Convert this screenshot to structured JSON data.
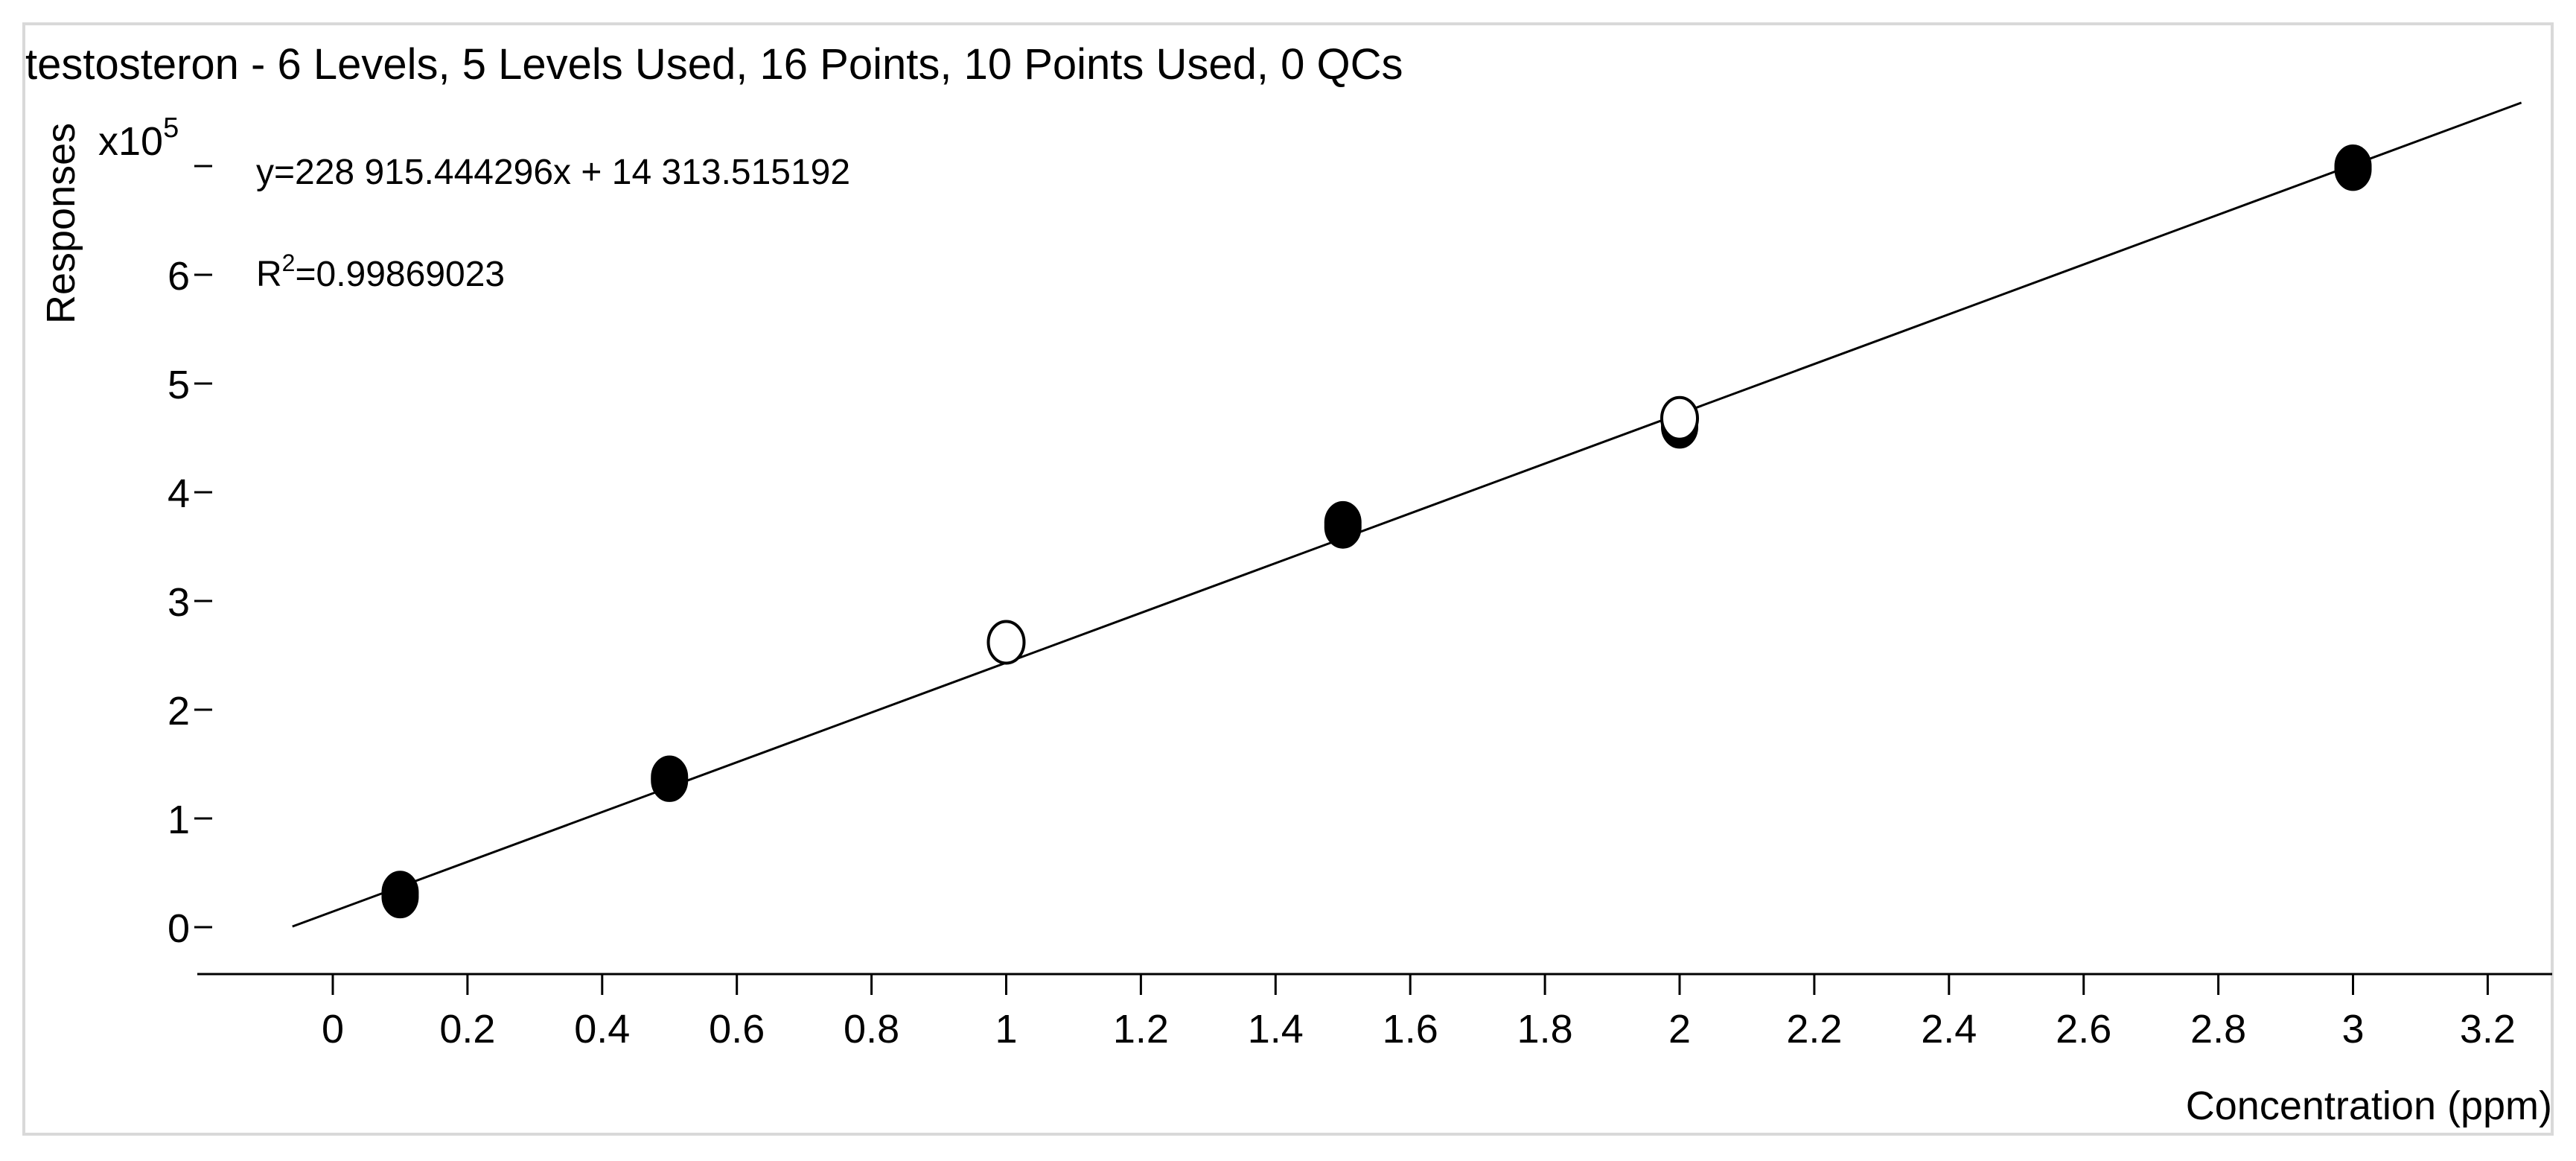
{
  "chart_data": {
    "type": "scatter",
    "title": "testosteron - 6 Levels, 5 Levels Used, 16 Points, 10 Points Used, 0 QCs",
    "xlabel": "Concentration (ppm)",
    "ylabel": "Responses",
    "y_multiplier": "x10",
    "y_multiplier_exp": "5",
    "xlim": [
      -0.2,
      3.25
    ],
    "ylim": [
      -0.4,
      7.6
    ],
    "x_ticks": [
      0,
      0.2,
      0.4,
      0.6,
      0.8,
      1,
      1.2,
      1.4,
      1.6,
      1.8,
      2,
      2.2,
      2.4,
      2.6,
      2.8,
      3,
      3.2
    ],
    "x_tick_labels": [
      "0",
      "0.2",
      "0.4",
      "0.6",
      "0.8",
      "1",
      "1.2",
      "1.4",
      "1.6",
      "1.8",
      "2",
      "2.2",
      "2.4",
      "2.6",
      "2.8",
      "3",
      "3.2"
    ],
    "y_ticks": [
      0,
      1,
      2,
      3,
      4,
      5,
      6,
      7
    ],
    "y_tick_labels": [
      "0",
      "1",
      "2",
      "3",
      "4",
      "5",
      "6",
      ""
    ],
    "fit": {
      "equation": "y=228 915.444296x + 14 313.515192",
      "r2_label": "R",
      "r2_sup": "2",
      "r2_value": "=0.99869023",
      "slope": 2.28915444296,
      "intercept": 0.14313515192,
      "x_range": [
        -0.06,
        3.25
      ]
    },
    "series": [
      {
        "used": true,
        "x": [
          0.1,
          0.1,
          0.5,
          0.5,
          1.5,
          1.5,
          2,
          2,
          3,
          3
        ],
        "y": [
          0.28,
          0.32,
          1.35,
          1.38,
          3.68,
          3.72,
          4.6,
          4.65,
          6.97,
          7.0
        ]
      },
      {
        "used": false,
        "x": [
          1,
          2
        ],
        "y": [
          2.62,
          4.68
        ]
      }
    ],
    "grid": false
  }
}
